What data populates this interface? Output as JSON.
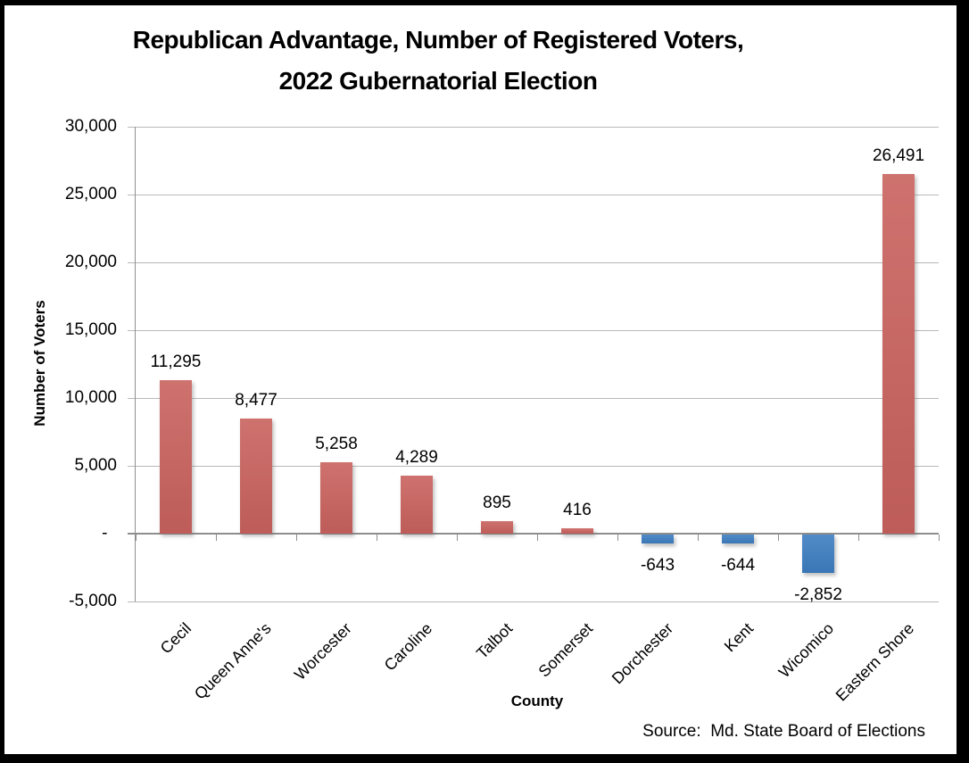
{
  "title": {
    "line1": "Republican Advantage, Number of Registered Voters,",
    "line2": "2022 Gubernatorial Election"
  },
  "source": "Source:  Md. State Board of Elections",
  "colors": {
    "positive_bar": "#C9625E",
    "negative_bar": "#3E7EC1",
    "gridline": "#B9B9B9",
    "axis_line": "#8E8E8E",
    "text": "#000000"
  },
  "chart_data": {
    "type": "bar",
    "title": "Republican Advantage, Number of Registered Voters, 2022 Gubernatorial Election",
    "categories": [
      "Cecil",
      "Queen Anne's",
      "Worcester",
      "Caroline",
      "Talbot",
      "Somerset",
      "Dorchester",
      "Kent",
      "Wicomico",
      "Eastern Shore"
    ],
    "values": [
      11295,
      8477,
      5258,
      4289,
      895,
      416,
      -643,
      -644,
      -2852,
      26491
    ],
    "value_labels": [
      "11,295",
      "8,477",
      "5,258",
      "4,289",
      "895",
      "416",
      "-643",
      "-644",
      "-2,852",
      "26,491"
    ],
    "xlabel": "County",
    "ylabel": "Number of Voters",
    "ylim": [
      -5000,
      30000
    ],
    "ytick_values": [
      30000,
      25000,
      20000,
      15000,
      10000,
      5000,
      0,
      -5000
    ],
    "ytick_labels": [
      "30,000",
      "25,000",
      "20,000",
      "15,000",
      "10,000",
      "5,000",
      "-  ",
      "-5,000"
    ],
    "grid": true,
    "legend": "none",
    "series_color_rule": "positive values red, negative values blue"
  }
}
